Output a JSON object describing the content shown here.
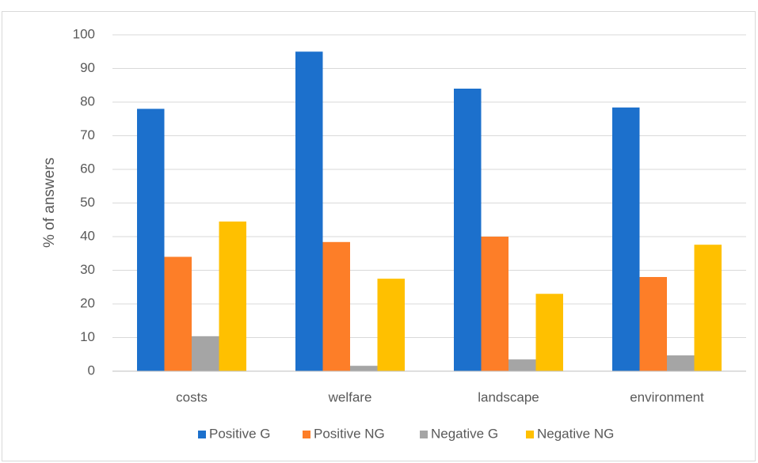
{
  "chart_data": {
    "type": "bar",
    "y_label": "% of answers",
    "categories": [
      "costs",
      "welfare",
      "landscape",
      "environment"
    ],
    "series": [
      {
        "name": "Positive G",
        "color": "#1c70cc",
        "values": [
          78,
          95,
          84,
          78.4
        ]
      },
      {
        "name": "Positive NG",
        "color": "#fd7e28",
        "values": [
          34,
          38.4,
          40,
          28
        ]
      },
      {
        "name": "Negative G",
        "color": "#a5a5a5",
        "values": [
          10.4,
          1.6,
          3.5,
          4.7
        ]
      },
      {
        "name": "Negative NG",
        "color": "#ffc000",
        "values": [
          44.5,
          27.5,
          23,
          37.6
        ]
      }
    ],
    "ylim": [
      0,
      100
    ],
    "yticks": [
      0,
      10,
      20,
      30,
      40,
      50,
      60,
      70,
      80,
      90,
      100
    ],
    "grid": true,
    "legend": "bottom"
  }
}
